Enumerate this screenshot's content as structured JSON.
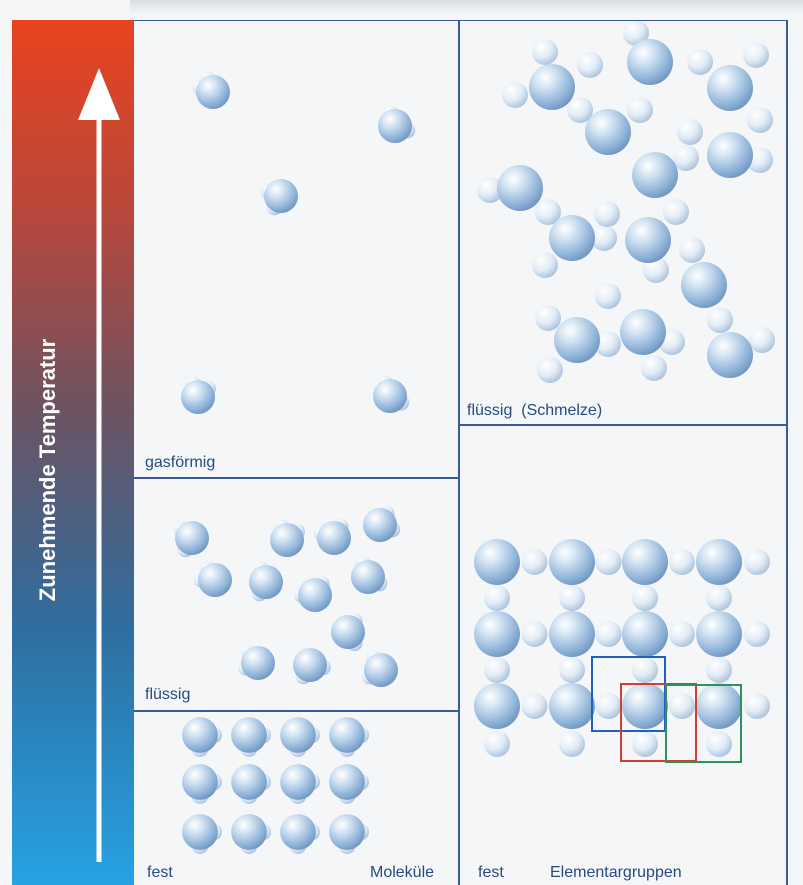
{
  "temperature_axis": {
    "label": "Zunehmende Temperatur",
    "gradient_top": "#e8431f",
    "gradient_bottom": "#25a3e3"
  },
  "panels": {
    "gas": {
      "label": "gasförmig"
    },
    "molecular_liquid": {
      "label": "flüssig"
    },
    "molecular_solid": {
      "label": "fest",
      "caption": "Moleküle"
    },
    "element_liquid": {
      "label": "flüssig  (Schmelze)"
    },
    "element_solid": {
      "label": "fest",
      "caption": "Elementargruppen"
    }
  },
  "colors": {
    "panel_lines": "#3a5a9a",
    "text": "#284a82",
    "atom_big": "#8fb3d8",
    "atom_small": "#d4e2f0",
    "cell_blue": "#2060c0",
    "cell_red": "#d04030",
    "cell_green": "#30905a"
  }
}
